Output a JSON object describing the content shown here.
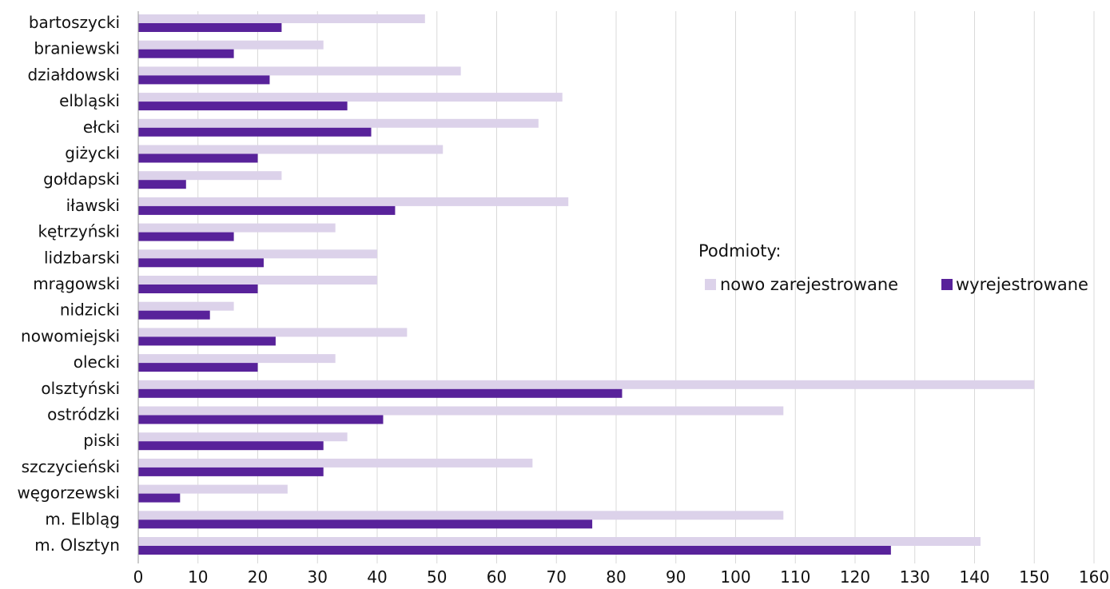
{
  "chart_data": {
    "type": "bar",
    "orientation": "horizontal",
    "categories": [
      "bartoszycki",
      "braniewski",
      "działdowski",
      "elbląski",
      "ełcki",
      "giżycki",
      "gołdapski",
      "iławski",
      "kętrzyński",
      "lidzbarski",
      "mrągowski",
      "nidzicki",
      "nowomiejski",
      "olecki",
      "olsztyński",
      "ostródzki",
      "piski",
      "szczycieński",
      "węgorzewski",
      "m. Elbląg",
      "m. Olsztyn"
    ],
    "series": [
      {
        "name": "nowo zarejestrowane",
        "color": "#dcd2ea",
        "values": [
          48,
          31,
          54,
          71,
          67,
          51,
          24,
          72,
          33,
          40,
          40,
          16,
          45,
          33,
          150,
          108,
          35,
          66,
          25,
          108,
          141
        ]
      },
      {
        "name": "wyrejestrowane",
        "color": "#58229a",
        "values": [
          24,
          16,
          22,
          35,
          39,
          20,
          8,
          43,
          16,
          21,
          20,
          12,
          23,
          20,
          81,
          41,
          31,
          31,
          7,
          76,
          126
        ]
      }
    ],
    "xlim": [
      0,
      160
    ],
    "xticks": [
      "0",
      "10",
      "20",
      "30",
      "40",
      "50",
      "60",
      "70",
      "80",
      "90",
      "100",
      "110",
      "120",
      "130",
      "140",
      "150",
      "160"
    ],
    "grid": "vertical",
    "legend": {
      "title": "Podmioty:",
      "placement": "right-middle"
    }
  }
}
